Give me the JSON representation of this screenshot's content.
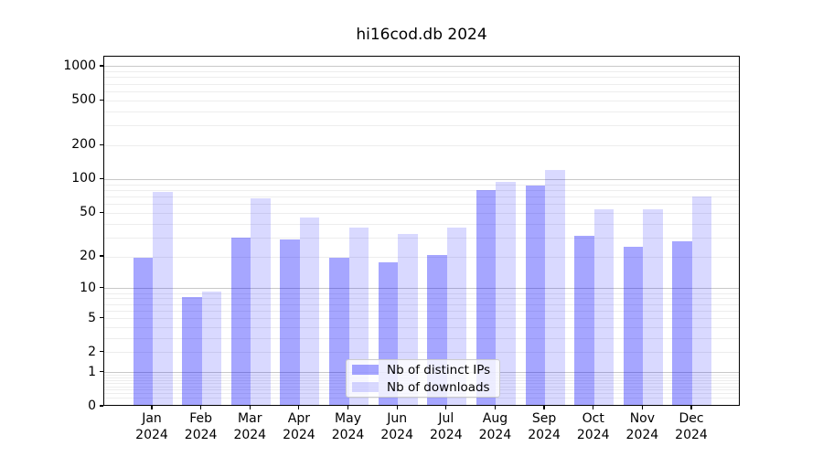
{
  "chart_data": {
    "type": "bar",
    "title": "hi16cod.db 2024",
    "categories": [
      "Jan",
      "Feb",
      "Mar",
      "Apr",
      "May",
      "Jun",
      "Jul",
      "Aug",
      "Sep",
      "Oct",
      "Nov",
      "Dec"
    ],
    "x_year": "2024",
    "series": [
      {
        "name": "Nb of distinct IPs",
        "color": "#0000ff",
        "alpha": 0.35,
        "values": [
          19,
          8,
          29,
          28,
          19,
          17,
          20,
          77,
          86,
          30,
          24,
          27
        ]
      },
      {
        "name": "Nb of downloads",
        "color": "#0000ff",
        "alpha": 0.15,
        "values": [
          75,
          9,
          65,
          44,
          36,
          31,
          36,
          92,
          117,
          52,
          52,
          68
        ]
      }
    ],
    "y_axis": {
      "scale": "log10(1+v)",
      "ticks": [
        0,
        1,
        2,
        5,
        10,
        20,
        50,
        100,
        200,
        500,
        1000
      ],
      "ylim": [
        0,
        1230
      ],
      "major_gridlines": [
        1,
        10,
        100,
        1000
      ],
      "minor_gridlines": [
        0.2,
        0.3,
        0.4,
        0.5,
        0.6,
        0.7,
        0.8,
        0.9,
        2,
        3,
        4,
        5,
        6,
        7,
        8,
        9,
        20,
        30,
        40,
        50,
        60,
        70,
        80,
        90,
        200,
        300,
        400,
        500,
        600,
        700,
        800,
        900
      ]
    },
    "xlabel": "",
    "ylabel": "",
    "grid": true,
    "legend_position": "lower center",
    "colors": {
      "spine": "#000000",
      "major_grid": "#c8c8c8",
      "minor_grid": "#ededed",
      "legend_border": "#cccccc"
    }
  }
}
